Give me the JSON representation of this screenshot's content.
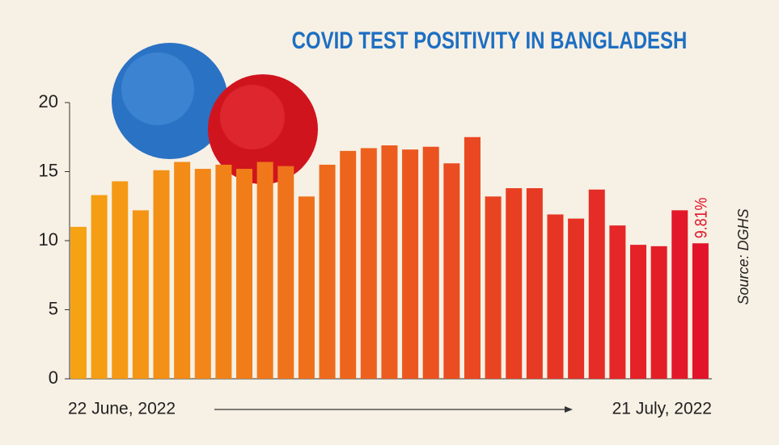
{
  "chart_data": {
    "type": "bar",
    "title": "COVID TEST POSITIVITY IN BANGLADESH",
    "source": "Source: DGHS",
    "categories": [
      "22 June, 2022",
      null,
      null,
      null,
      null,
      null,
      null,
      null,
      null,
      null,
      null,
      null,
      null,
      null,
      null,
      null,
      null,
      null,
      null,
      null,
      null,
      null,
      null,
      null,
      null,
      null,
      null,
      null,
      null,
      null,
      "21 July, 2022"
    ],
    "values": [
      11.0,
      13.3,
      14.3,
      12.2,
      15.1,
      15.7,
      15.2,
      15.5,
      15.2,
      15.7,
      15.4,
      13.2,
      15.5,
      16.5,
      16.7,
      16.9,
      16.6,
      16.8,
      15.6,
      17.5,
      13.2,
      13.8,
      13.8,
      11.9,
      11.6,
      13.7,
      11.1,
      9.7,
      9.6,
      12.2,
      9.81
    ],
    "value_labels": [
      null,
      null,
      null,
      null,
      null,
      null,
      null,
      null,
      null,
      null,
      null,
      null,
      null,
      null,
      null,
      null,
      null,
      null,
      null,
      null,
      null,
      null,
      null,
      null,
      null,
      null,
      null,
      null,
      null,
      null,
      "9.81%"
    ],
    "colors": [
      "#f6a313",
      "#e2142a"
    ],
    "ylim": [
      0,
      20
    ],
    "yticks": [
      0,
      5,
      10,
      15,
      20
    ]
  }
}
